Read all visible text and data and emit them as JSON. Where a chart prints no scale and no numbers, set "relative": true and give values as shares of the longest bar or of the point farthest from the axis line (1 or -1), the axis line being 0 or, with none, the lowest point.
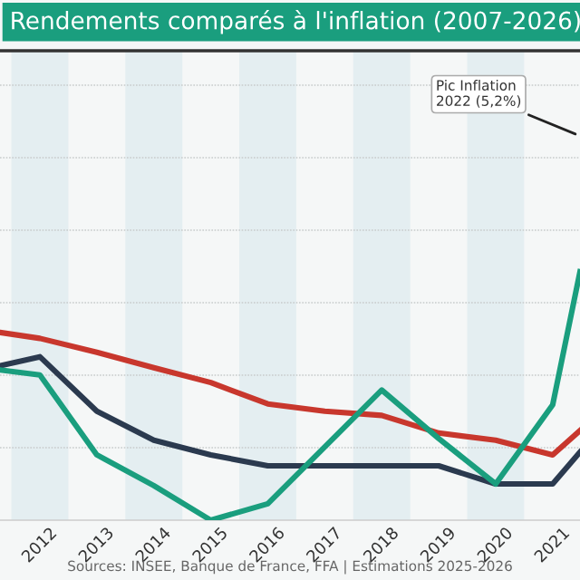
{
  "chart_data": {
    "type": "line",
    "title": "Rendements comparés à l'inflation (2007-2026)",
    "relative": true,
    "xlim": [
      2011.3,
      2021.48
    ],
    "xticks": [
      2012,
      2013,
      2014,
      2015,
      2016,
      2017,
      2018,
      2019,
      2020,
      2021
    ],
    "series": [
      {
        "color": "#c8372d",
        "x": [
          2011.3,
          2012,
          2013,
          2014,
          2015,
          2016,
          2017,
          2018,
          2019,
          2020,
          2021,
          2021.48
        ],
        "values": [
          0.756,
          0.732,
          0.676,
          0.614,
          0.554,
          0.468,
          0.439,
          0.422,
          0.351,
          0.322,
          0.263,
          0.361
        ]
      },
      {
        "color": "#2b3a4f",
        "x": [
          2011.3,
          2012,
          2013,
          2014,
          2015,
          2016,
          2017,
          2018,
          2019,
          2020,
          2021,
          2021.48
        ],
        "values": [
          0.622,
          0.658,
          0.439,
          0.322,
          0.263,
          0.219,
          0.219,
          0.219,
          0.219,
          0.146,
          0.146,
          0.274
        ]
      },
      {
        "color": "#1a9e7e",
        "x": [
          2011.3,
          2012,
          2013,
          2014,
          2015,
          2016,
          2018,
          2019,
          2020,
          2021,
          2021.48
        ],
        "values": [
          0.605,
          0.585,
          0.263,
          0.139,
          0,
          0.066,
          0.524,
          0.329,
          0.146,
          0.464,
          1
        ]
      }
    ],
    "bands": [
      {
        "axis": "x",
        "from": 2011.5,
        "to": 2012.5,
        "color": "#e4eef1"
      },
      {
        "axis": "x",
        "from": 2013.5,
        "to": 2014.5,
        "color": "#e4eef1"
      },
      {
        "axis": "x",
        "from": 2015.5,
        "to": 2016.5,
        "color": "#e4eef1"
      },
      {
        "axis": "x",
        "from": 2017.5,
        "to": 2018.5,
        "color": "#e4eef1"
      },
      {
        "axis": "x",
        "from": 2019.5,
        "to": 2020.5,
        "color": "#e4eef1"
      }
    ],
    "annotations": [
      "Pic Inflation\n2022 (5,2%)",
      "Sources: INSEE, Banque de France, FFA | Estimations 2025-2026"
    ],
    "grid": "y",
    "marker": "none",
    "line_style": "solid"
  }
}
